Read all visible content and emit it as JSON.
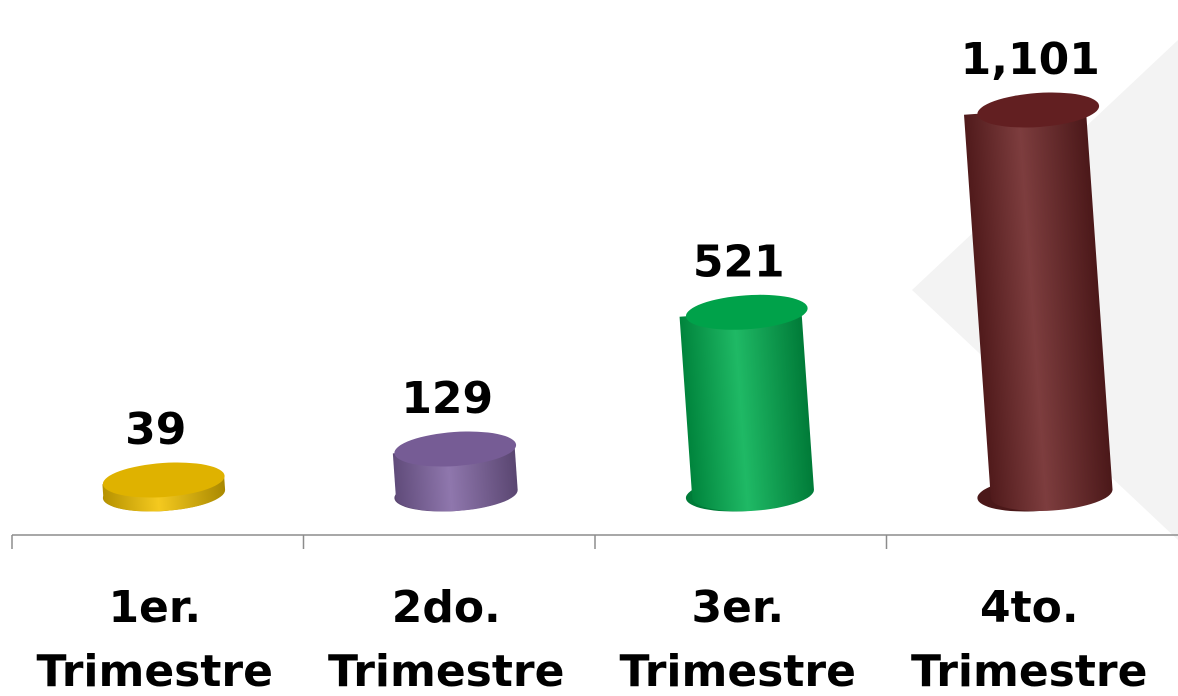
{
  "chart_data": {
    "type": "bar",
    "style": "3d-cylinder",
    "categories": [
      [
        "1er.",
        "Trimestre"
      ],
      [
        "2do.",
        "Trimestre"
      ],
      [
        "3er.",
        "Trimestre"
      ],
      [
        "4to.",
        "Trimestre"
      ]
    ],
    "values": [
      39,
      129,
      521,
      1101
    ],
    "value_labels": [
      "39",
      "129",
      "521",
      "1,101"
    ],
    "colors": [
      "#F2C200",
      "#8064A2",
      "#00B050",
      "#6B2224"
    ],
    "title": "",
    "xlabel": "",
    "ylabel": "",
    "ylim": [
      0,
      1101
    ],
    "grid": false,
    "legend": "none"
  }
}
